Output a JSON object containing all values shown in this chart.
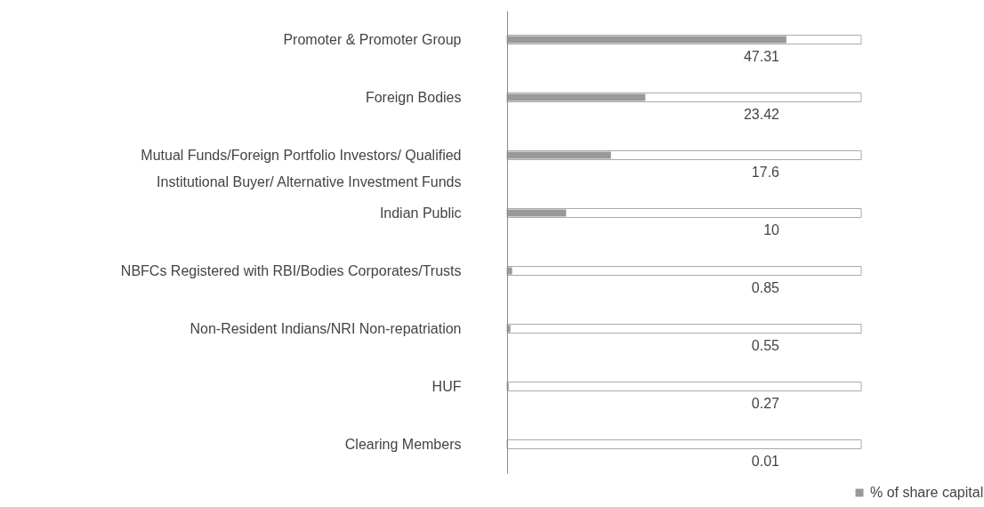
{
  "chart_data": {
    "type": "bar",
    "orientation": "horizontal",
    "categories": [
      "Promoter & Promoter Group",
      "Foreign Bodies",
      "Mutual Funds/Foreign Portfolio Investors/ Qualified Institutional Buyer/ Alternative Investment Funds",
      "Indian Public",
      "NBFCs Registered with RBI/Bodies Corporates/Trusts",
      "Non-Resident Indians/NRI Non-repatriation",
      "HUF",
      "Clearing Members"
    ],
    "series": [
      {
        "name": "% of share capital",
        "color": "#999999",
        "values": [
          47.31,
          23.42,
          17.6,
          10,
          0.85,
          0.55,
          0.27,
          0.01
        ]
      }
    ],
    "xlim": [
      0,
      60
    ],
    "data_labels": true,
    "tick_labels": "y",
    "grid": false,
    "legend": "bottom right"
  }
}
